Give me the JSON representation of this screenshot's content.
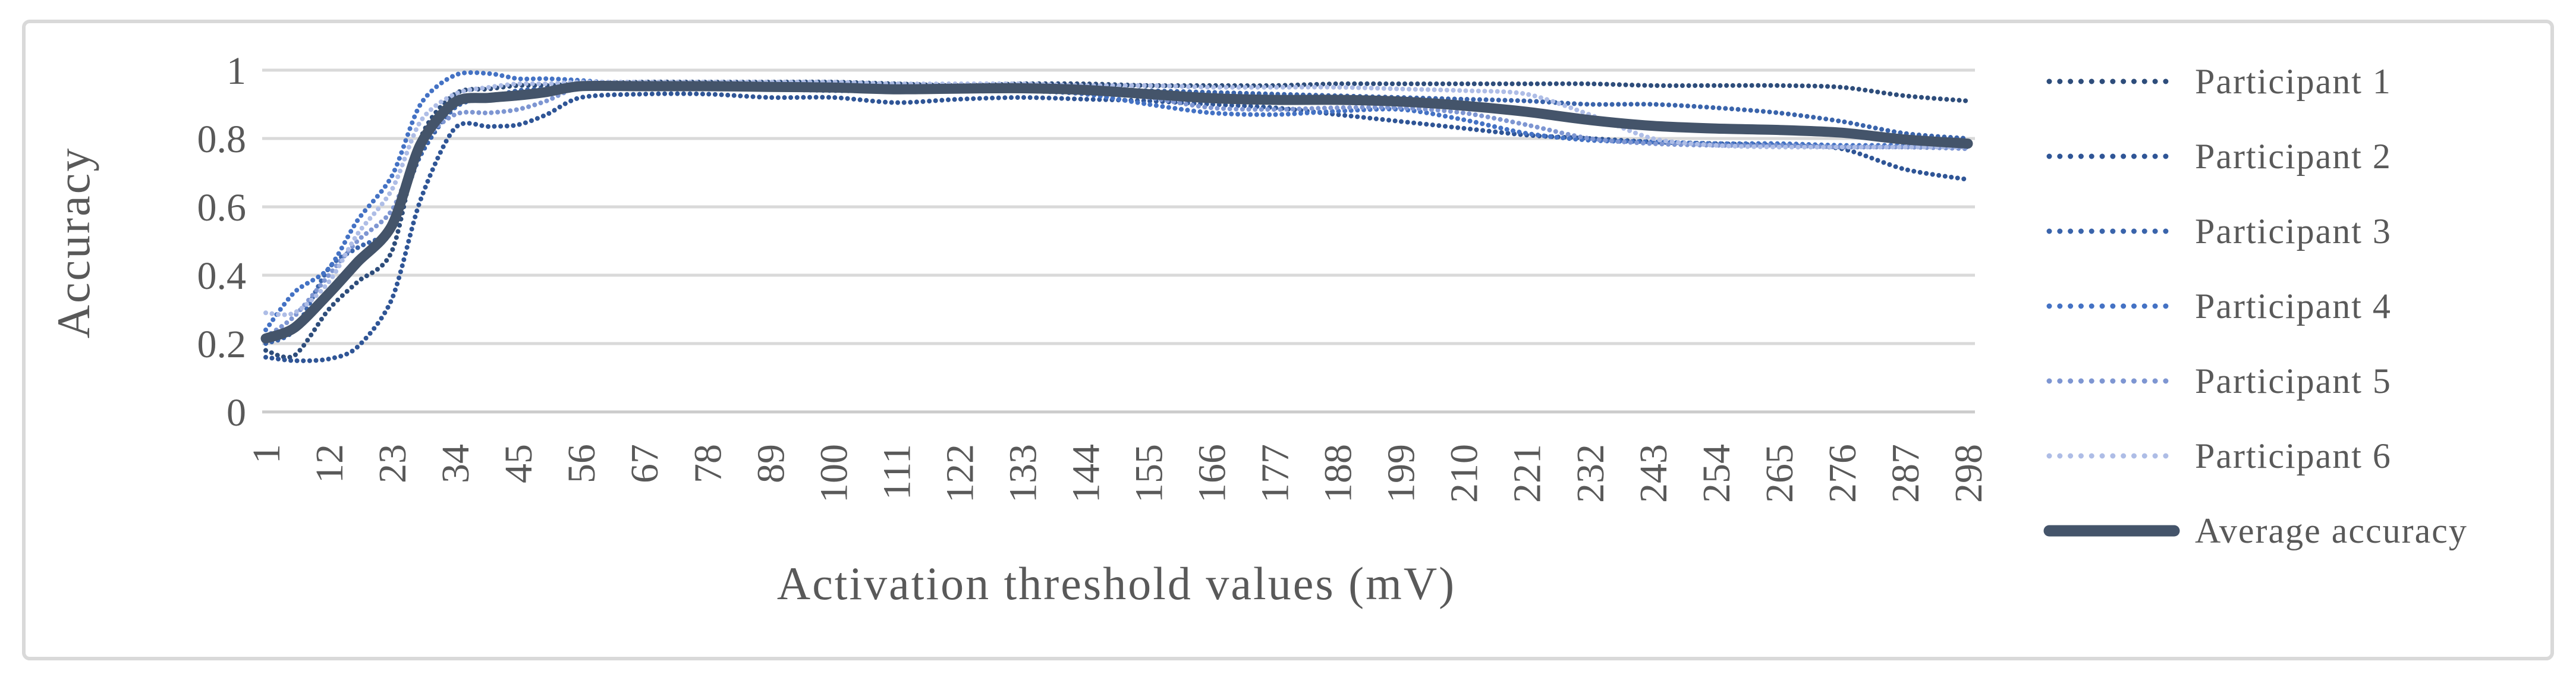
{
  "figure": {
    "background": "#ffffff",
    "border_color": "#d9d9d9"
  },
  "chart_data": {
    "type": "line",
    "title": "",
    "xlabel": "Activation threshold values (mV)",
    "ylabel": "Accuracy",
    "x": [
      1,
      6,
      12,
      17,
      23,
      28,
      34,
      40,
      45,
      50,
      56,
      67,
      78,
      89,
      100,
      111,
      122,
      133,
      144,
      155,
      166,
      177,
      188,
      199,
      210,
      221,
      232,
      243,
      254,
      265,
      276,
      287,
      298
    ],
    "xtick_values": [
      1,
      12,
      23,
      34,
      45,
      56,
      67,
      78,
      89,
      100,
      111,
      122,
      133,
      144,
      155,
      166,
      177,
      188,
      199,
      210,
      221,
      232,
      243,
      254,
      265,
      276,
      287,
      298
    ],
    "xlim": [
      1,
      298
    ],
    "ylim": [
      0,
      1
    ],
    "yticks": [
      0,
      0.2,
      0.4,
      0.6,
      0.8,
      1
    ],
    "ytick_labels": [
      "0",
      "0.2",
      "0.4",
      "0.6",
      "0.8",
      "1"
    ],
    "grid": "horizontal",
    "grid_color": "#d9d9d9",
    "axis_line_color": "#cccccc",
    "text_color": "#595959",
    "legend_position": "right",
    "series": [
      {
        "name": "Participant 1",
        "color": "#2e4d7b",
        "style": "dotted",
        "values": [
          0.18,
          0.165,
          0.3,
          0.38,
          0.47,
          0.8,
          0.93,
          0.945,
          0.955,
          0.955,
          0.96,
          0.965,
          0.965,
          0.965,
          0.965,
          0.96,
          0.955,
          0.96,
          0.96,
          0.955,
          0.955,
          0.955,
          0.96,
          0.96,
          0.96,
          0.96,
          0.96,
          0.955,
          0.955,
          0.955,
          0.95,
          0.925,
          0.91
        ]
      },
      {
        "name": "Participant 2",
        "color": "#2f5596",
        "style": "dotted",
        "values": [
          0.16,
          0.15,
          0.155,
          0.19,
          0.33,
          0.62,
          0.83,
          0.835,
          0.84,
          0.87,
          0.92,
          0.93,
          0.93,
          0.92,
          0.92,
          0.905,
          0.915,
          0.92,
          0.915,
          0.91,
          0.9,
          0.89,
          0.87,
          0.85,
          0.83,
          0.81,
          0.8,
          0.79,
          0.785,
          0.78,
          0.77,
          0.71,
          0.68
        ]
      },
      {
        "name": "Participant 3",
        "color": "#3a64ab",
        "style": "dotted",
        "values": [
          0.2,
          0.24,
          0.42,
          0.48,
          0.54,
          0.75,
          0.89,
          0.92,
          0.94,
          0.945,
          0.95,
          0.95,
          0.955,
          0.955,
          0.95,
          0.95,
          0.95,
          0.95,
          0.945,
          0.94,
          0.935,
          0.93,
          0.925,
          0.92,
          0.915,
          0.91,
          0.9,
          0.9,
          0.89,
          0.875,
          0.85,
          0.815,
          0.8
        ]
      },
      {
        "name": "Participant 4",
        "color": "#4472c4",
        "style": "dotted",
        "values": [
          0.24,
          0.35,
          0.42,
          0.56,
          0.69,
          0.9,
          0.985,
          0.99,
          0.975,
          0.975,
          0.97,
          0.955,
          0.95,
          0.945,
          0.94,
          0.94,
          0.945,
          0.94,
          0.93,
          0.9,
          0.875,
          0.87,
          0.88,
          0.885,
          0.855,
          0.815,
          0.795,
          0.79,
          0.785,
          0.785,
          0.78,
          0.78,
          0.775
        ]
      },
      {
        "name": "Participant 5",
        "color": "#7e96d2",
        "style": "dotted",
        "values": [
          0.22,
          0.28,
          0.4,
          0.5,
          0.59,
          0.78,
          0.87,
          0.875,
          0.885,
          0.91,
          0.95,
          0.955,
          0.955,
          0.955,
          0.955,
          0.95,
          0.95,
          0.95,
          0.945,
          0.92,
          0.89,
          0.885,
          0.89,
          0.89,
          0.875,
          0.84,
          0.8,
          0.785,
          0.78,
          0.78,
          0.775,
          0.775,
          0.77
        ]
      },
      {
        "name": "Participant 6",
        "color": "#aebde6",
        "style": "dotted",
        "values": [
          0.29,
          0.29,
          0.38,
          0.52,
          0.65,
          0.85,
          0.93,
          0.95,
          0.96,
          0.96,
          0.965,
          0.965,
          0.965,
          0.965,
          0.965,
          0.96,
          0.96,
          0.96,
          0.955,
          0.955,
          0.95,
          0.95,
          0.95,
          0.945,
          0.94,
          0.93,
          0.87,
          0.8,
          0.78,
          0.775,
          0.775,
          0.775,
          0.775
        ]
      },
      {
        "name": "Average accuracy",
        "color": "#44546a",
        "style": "solid",
        "values": [
          0.215,
          0.246,
          0.346,
          0.438,
          0.545,
          0.783,
          0.906,
          0.919,
          0.926,
          0.936,
          0.953,
          0.953,
          0.953,
          0.951,
          0.949,
          0.944,
          0.946,
          0.947,
          0.942,
          0.93,
          0.918,
          0.913,
          0.913,
          0.908,
          0.896,
          0.878,
          0.854,
          0.837,
          0.829,
          0.825,
          0.817,
          0.797,
          0.785
        ]
      }
    ]
  }
}
